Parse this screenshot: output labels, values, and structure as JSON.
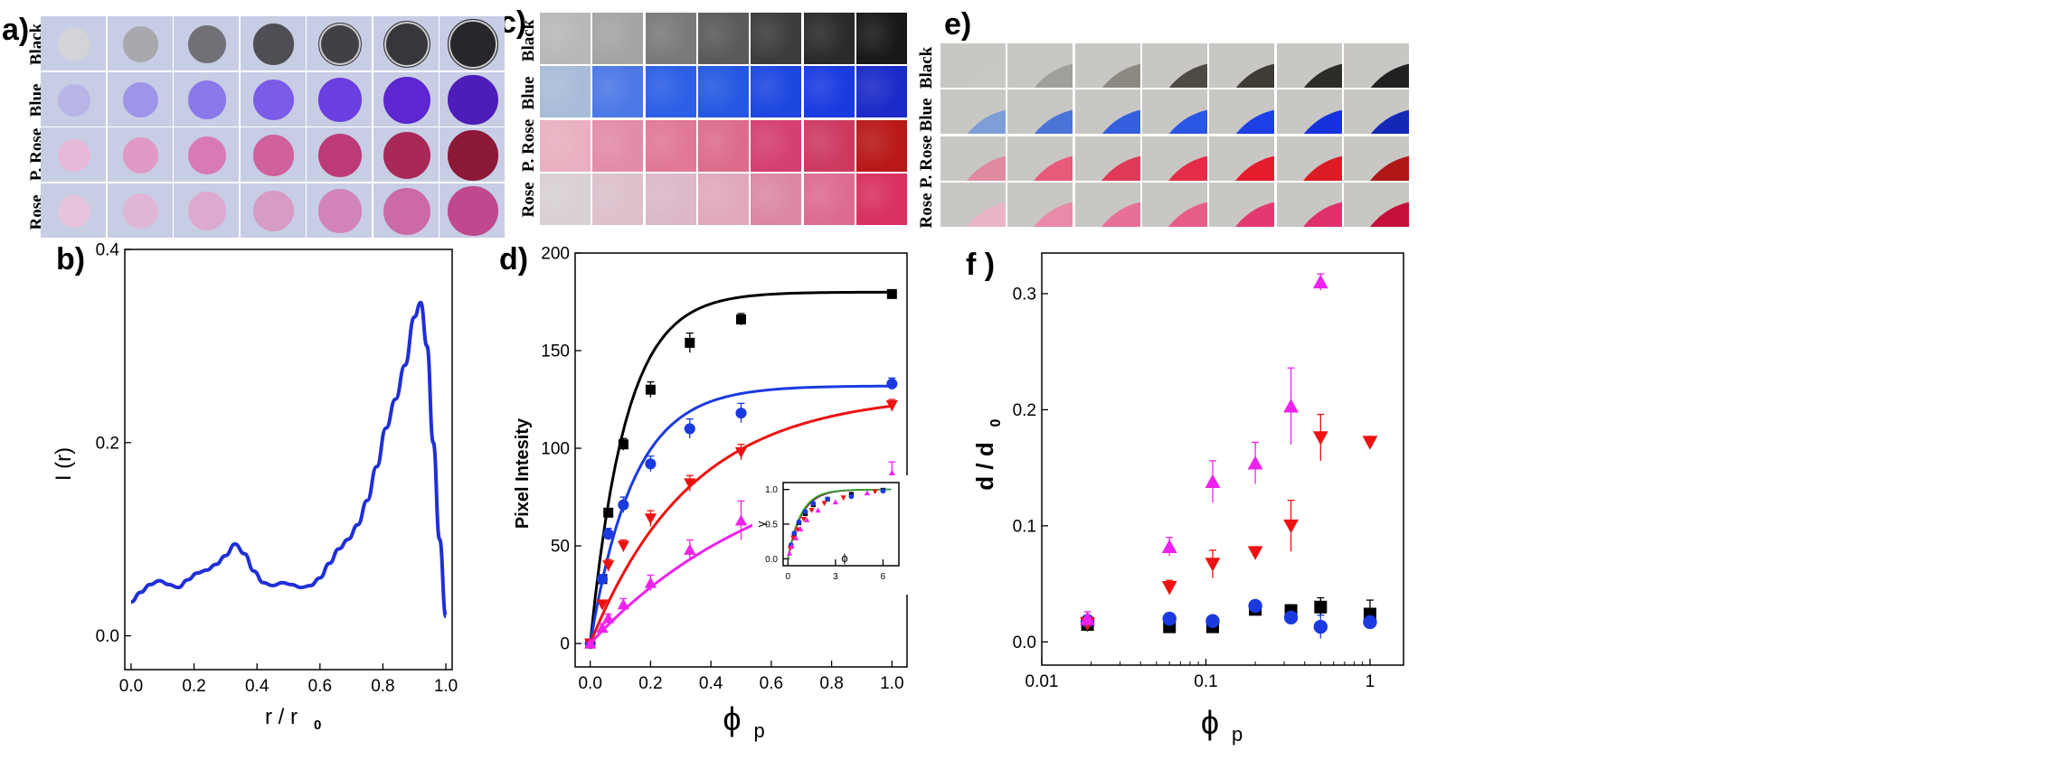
{
  "panel_labels": {
    "a": "a)",
    "b": "b)",
    "c": "c)",
    "d": "d)",
    "e": "e)",
    "f": "f )"
  },
  "row_labels": [
    "Black",
    "Blue",
    "P. Rose",
    "Rose"
  ],
  "row_colors": {
    "Black": [
      "#d3d3d8",
      "#a8a8ae",
      "#707076",
      "#4e4e54",
      "#404046",
      "#36363c",
      "#26262c"
    ],
    "Blue": [
      "#b8b4e6",
      "#9e94ea",
      "#8a78ea",
      "#7a5ce8",
      "#6a3ee0",
      "#5c26d0",
      "#4e1cb8"
    ],
    "P. Rose": [
      "#e8b8d8",
      "#e09ac8",
      "#d87ab4",
      "#d0609e",
      "#bc3a78",
      "#a82858",
      "#8c1838"
    ],
    "Rose": [
      "#e6c4dc",
      "#e0b6d6",
      "#dcaad0",
      "#d89ac6",
      "#d284b8",
      "#cc6aa6",
      "#c0488e"
    ]
  },
  "texture_colors": {
    "Black": [
      "#b8b8b8",
      "#a4a4a4",
      "#7a7a7a",
      "#5a5a5a",
      "#3c3c3c",
      "#2a2a2a",
      "#181818"
    ],
    "Blue": [
      "#a8bcd8",
      "#4c78e6",
      "#2c5ee6",
      "#2458e2",
      "#1c46e0",
      "#1a3ae0",
      "#1a2ac8"
    ],
    "P. Rose": [
      "#e8b0c0",
      "#e28ca8",
      "#e07898",
      "#dc6c8c",
      "#d44070",
      "#cc3a60",
      "#b81818"
    ],
    "Rose": [
      "#d8d0d4",
      "#dcc0cc",
      "#dcb8c8",
      "#e0a8bc",
      "#dc88a4",
      "#dc6c90",
      "#d83060"
    ]
  },
  "edge_colors": {
    "Black": [
      "#c8c8c4",
      "#a0a09a",
      "#8c8a80",
      "#504a44",
      "#3e3a34",
      "#2e2c28",
      "#222020"
    ],
    "Blue": [
      "#7e9ed8",
      "#4a74d8",
      "#3460e0",
      "#2a56e4",
      "#1c40e6",
      "#1632dc",
      "#1428b8"
    ],
    "P. Rose": [
      "#e08aa0",
      "#e65a7a",
      "#e03a58",
      "#e42c48",
      "#e41c2c",
      "#dc1c24",
      "#b01818"
    ],
    "Rose": [
      "#eab4c8",
      "#e88aa8",
      "#e87098",
      "#e85c88",
      "#e43870",
      "#e0306a",
      "#c4103a"
    ]
  },
  "chart_data": [
    {
      "panel": "b",
      "type": "line",
      "xlabel": "r / r",
      "xlabel_sub": "0",
      "ylabel": "I (r)",
      "xlim": [
        -0.02,
        1.02
      ],
      "ylim": [
        -0.035,
        0.4
      ],
      "xticks": [
        0.0,
        0.2,
        0.4,
        0.6,
        0.8,
        1.0
      ],
      "xtick_labels": [
        "0.0",
        "0.2",
        "0.4",
        "0.6",
        "0.8",
        "1.0"
      ],
      "yticks": [
        0.0,
        0.2,
        0.4
      ],
      "ytick_labels": [
        "0.0",
        "0.2",
        "0.4"
      ],
      "series": [
        {
          "name": "I(r)",
          "color": "#1f2fd6",
          "x": [
            0.0,
            0.03,
            0.06,
            0.09,
            0.12,
            0.15,
            0.18,
            0.21,
            0.24,
            0.27,
            0.3,
            0.33,
            0.36,
            0.39,
            0.42,
            0.45,
            0.48,
            0.51,
            0.54,
            0.57,
            0.6,
            0.63,
            0.66,
            0.69,
            0.72,
            0.75,
            0.78,
            0.81,
            0.84,
            0.87,
            0.9,
            0.92,
            0.94,
            0.96,
            0.98,
            1.0
          ],
          "y": [
            0.035,
            0.045,
            0.053,
            0.057,
            0.053,
            0.05,
            0.058,
            0.065,
            0.068,
            0.074,
            0.083,
            0.095,
            0.085,
            0.067,
            0.055,
            0.052,
            0.055,
            0.053,
            0.05,
            0.052,
            0.06,
            0.075,
            0.09,
            0.1,
            0.115,
            0.14,
            0.175,
            0.215,
            0.245,
            0.28,
            0.33,
            0.345,
            0.3,
            0.2,
            0.1,
            0.02
          ]
        }
      ]
    },
    {
      "panel": "d",
      "type": "scatter",
      "xlabel": "ϕ",
      "xlabel_sub": "p",
      "ylabel": "Pixel Intesity",
      "xlim": [
        -0.05,
        1.05
      ],
      "ylim": [
        -12,
        200
      ],
      "xticks": [
        0.0,
        0.2,
        0.4,
        0.6,
        0.8,
        1.0
      ],
      "xtick_labels": [
        "0.0",
        "0.2",
        "0.4",
        "0.6",
        "0.8",
        "1.0"
      ],
      "yticks": [
        0,
        50,
        100,
        150,
        200
      ],
      "ytick_labels": [
        "0",
        "50",
        "100",
        "150",
        "200"
      ],
      "series": [
        {
          "name": "Black",
          "color": "#000000",
          "marker": "square",
          "x": [
            0,
            0.04,
            0.06,
            0.11,
            0.2,
            0.33,
            0.5,
            1.0
          ],
          "y": [
            0,
            33,
            67,
            102,
            130,
            154,
            166,
            179
          ],
          "err": [
            0,
            2,
            2,
            3,
            4,
            5,
            3,
            2
          ],
          "fit_a": 180,
          "fit_k": 8.5
        },
        {
          "name": "Blue",
          "color": "#1a3ae0",
          "marker": "circle",
          "x": [
            0,
            0.04,
            0.06,
            0.11,
            0.2,
            0.33,
            0.5,
            1.0
          ],
          "y": [
            0,
            33,
            56,
            71,
            92,
            110,
            118,
            133
          ],
          "err": [
            0,
            2,
            3,
            4,
            4,
            5,
            5,
            3
          ],
          "fit_a": 132,
          "fit_k": 7.0
        },
        {
          "name": "P. Rose",
          "color": "#ee1111",
          "marker": "triangle-down",
          "x": [
            0,
            0.04,
            0.06,
            0.11,
            0.2,
            0.33,
            0.5,
            1.0
          ],
          "y": [
            0,
            20,
            40,
            50,
            64,
            82,
            98,
            122
          ],
          "err": [
            0,
            2,
            3,
            3,
            4,
            4,
            4,
            3
          ],
          "fit_a": 128,
          "fit_k": 3.0
        },
        {
          "name": "Rose",
          "color": "#ee22ee",
          "marker": "triangle-up",
          "x": [
            0,
            0.04,
            0.06,
            0.11,
            0.2,
            0.33,
            0.5,
            1.0
          ],
          "y": [
            0,
            8,
            13,
            20,
            31,
            48,
            63,
            86
          ],
          "err": [
            0,
            2,
            2,
            3,
            4,
            5,
            10,
            7
          ],
          "fit_a": 105,
          "fit_k": 1.6
        }
      ]
    },
    {
      "panel": "d-inset",
      "type": "scatter",
      "xlabel": "ϕ",
      "ylabel": "γ",
      "xlim": [
        -0.3,
        7.0
      ],
      "ylim": [
        -0.1,
        1.1
      ],
      "xticks": [
        0,
        3,
        6
      ],
      "xtick_labels": [
        "0",
        "3",
        "6"
      ],
      "yticks": [
        0.0,
        0.5,
        1.0
      ],
      "ytick_labels": [
        "0.0",
        "0.5",
        "1.0"
      ],
      "series": [
        {
          "name": "Black",
          "color": "#000000",
          "marker": "square",
          "x": [
            0.2,
            0.4,
            0.7,
            1.1,
            1.6,
            2.5,
            4.0,
            6.0
          ],
          "y": [
            0.18,
            0.34,
            0.52,
            0.65,
            0.78,
            0.86,
            0.93,
            0.99
          ]
        },
        {
          "name": "Blue",
          "color": "#1a3ae0",
          "marker": "circle",
          "x": [
            0.2,
            0.4,
            0.7,
            1.1,
            1.6,
            2.5,
            4.0,
            6.0
          ],
          "y": [
            0.2,
            0.37,
            0.53,
            0.68,
            0.8,
            0.86,
            0.9,
            0.98
          ]
        },
        {
          "name": "P. Rose",
          "color": "#ee1111",
          "marker": "triangle-down",
          "x": [
            0.15,
            0.35,
            0.6,
            1.0,
            1.5,
            2.3,
            3.5,
            5.5
          ],
          "y": [
            0.15,
            0.3,
            0.42,
            0.57,
            0.7,
            0.8,
            0.88,
            0.97
          ]
        },
        {
          "name": "Rose",
          "color": "#ee22ee",
          "marker": "triangle-up",
          "x": [
            0.1,
            0.25,
            0.5,
            0.8,
            1.2,
            1.9,
            3.0,
            5.0
          ],
          "y": [
            0.08,
            0.18,
            0.3,
            0.43,
            0.56,
            0.7,
            0.82,
            0.95
          ]
        }
      ],
      "fit_colors": [
        "#1a3ae0",
        "#ee1111",
        "#22aa22"
      ],
      "fit_k": 1.15
    },
    {
      "panel": "f",
      "type": "scatter",
      "xscale": "log",
      "xlabel": "ϕ",
      "xlabel_sub": "p",
      "ylabel": "d / d",
      "ylabel_sub": "0",
      "xlim": [
        0.01,
        1.6
      ],
      "ylim": [
        -0.02,
        0.335
      ],
      "xticks": [
        0.01,
        0.1,
        1
      ],
      "xtick_labels": [
        "0.01",
        "0.1",
        "1"
      ],
      "yticks": [
        0.0,
        0.1,
        0.2,
        0.3
      ],
      "ytick_labels": [
        "0.0",
        "0.1",
        "0.2",
        "0.3"
      ],
      "series": [
        {
          "name": "Black",
          "color": "#000000",
          "marker": "square",
          "x": [
            0.019,
            0.06,
            0.11,
            0.2,
            0.33,
            0.5,
            1.0
          ],
          "y": [
            0.015,
            0.013,
            0.013,
            0.028,
            0.027,
            0.03,
            0.024
          ],
          "err": [
            0.006,
            0.004,
            0.004,
            0.005,
            0.005,
            0.008,
            0.012
          ]
        },
        {
          "name": "Blue",
          "color": "#1a3ae0",
          "marker": "circle",
          "x": [
            0.019,
            0.06,
            0.11,
            0.2,
            0.33,
            0.5,
            1.0
          ],
          "y": [
            0.018,
            0.02,
            0.018,
            0.031,
            0.021,
            0.013,
            0.017
          ],
          "err": [
            0.004,
            0.004,
            0.003,
            0.004,
            0.004,
            0.01,
            0.005
          ]
        },
        {
          "name": "P. Rose",
          "color": "#ee1111",
          "marker": "triangle-down",
          "x": [
            0.019,
            0.06,
            0.11,
            0.2,
            0.33,
            0.5,
            1.0
          ],
          "y": [
            0.016,
            0.047,
            0.067,
            0.077,
            0.1,
            0.176,
            0.172
          ],
          "err": [
            0.005,
            0.006,
            0.012,
            0.005,
            0.022,
            0.02,
            0.005
          ]
        },
        {
          "name": "Rose",
          "color": "#ee22ee",
          "marker": "triangle-up",
          "x": [
            0.019,
            0.06,
            0.11,
            0.2,
            0.33,
            0.5
          ],
          "y": [
            0.02,
            0.082,
            0.138,
            0.154,
            0.203,
            0.31
          ],
          "err": [
            0.006,
            0.008,
            0.018,
            0.018,
            0.033,
            0.007
          ]
        }
      ]
    }
  ]
}
